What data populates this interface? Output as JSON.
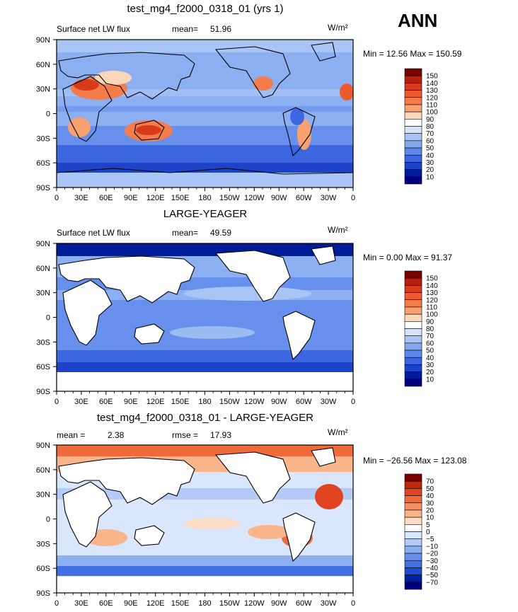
{
  "season": "ANN",
  "units": "W/m²",
  "lon_labels": [
    "0",
    "30E",
    "60E",
    "90E",
    "120E",
    "150E",
    "180",
    "150W",
    "120W",
    "90W",
    "60W",
    "30W",
    "0"
  ],
  "lat_labels": [
    "90N",
    "60N",
    "30N",
    "0",
    "30S",
    "60S",
    "90S"
  ],
  "panels": [
    {
      "title": "test_mg4_f2000_0318_01 (yrs 1)",
      "left_label": "Surface net LW flux",
      "stat_label": "mean=",
      "stat_value": "51.96",
      "minmax": "Min =   12.56 Max = 150.59",
      "levels": [
        "150",
        "140",
        "130",
        "120",
        "110",
        "100",
        "90",
        "80",
        "70",
        "60",
        "50",
        "40",
        "30",
        "20",
        "10"
      ]
    },
    {
      "title": "LARGE-YEAGER",
      "left_label": "Surface net LW flux",
      "stat_label": "mean=",
      "stat_value": "49.59",
      "minmax": "Min =    0.00 Max =  91.37",
      "levels": [
        "150",
        "140",
        "130",
        "120",
        "110",
        "100",
        "90",
        "80",
        "70",
        "60",
        "50",
        "40",
        "30",
        "20",
        "10"
      ]
    },
    {
      "title": "test_mg4_f2000_0318_01 - LARGE-YEAGER",
      "left_label": "mean =",
      "left_value": "2.38",
      "stat_label": "rmse =",
      "stat_value": "17.93",
      "minmax": "Min = −26.56 Max = 123.08",
      "levels": [
        "70",
        "50",
        "40",
        "30",
        "20",
        "10",
        "5",
        "0",
        "−5",
        "−10",
        "−20",
        "−30",
        "−40",
        "−50",
        "−70"
      ]
    }
  ],
  "colors": {
    "abs_ramp": [
      "#7a0000",
      "#b3200e",
      "#d83a1c",
      "#ec5a2e",
      "#f47c4a",
      "#f8a070",
      "#fcd6b8",
      "#ffffff",
      "#d4e4fb",
      "#a9c5f5",
      "#82a9f0",
      "#5c88ea",
      "#3b66e0",
      "#1c43c8",
      "#001c99",
      "#00007e"
    ],
    "diff_ramp": [
      "#7a0000",
      "#c0250d",
      "#e04420",
      "#f06a3c",
      "#f69060",
      "#fab48a",
      "#fcdcc4",
      "#ffffff",
      "#d9e6fb",
      "#b3cbf6",
      "#8caff1",
      "#6690ec",
      "#4070e3",
      "#1e4cd0",
      "#0020a6",
      "#00007e"
    ]
  }
}
